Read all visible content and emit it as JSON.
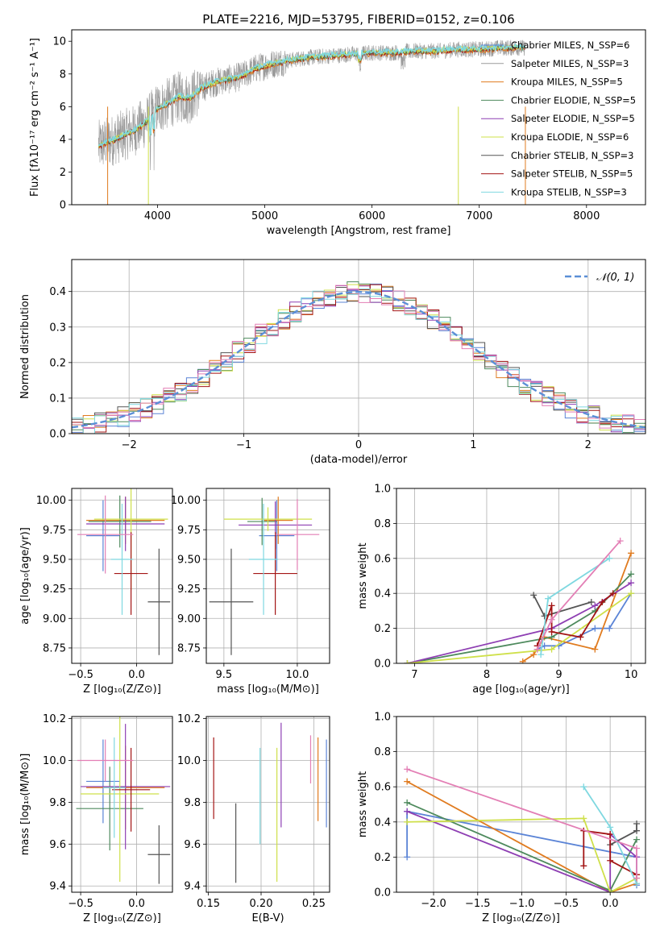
{
  "colors": {
    "chabrier_miles": "#5b84d6",
    "salpeter_miles": "#9a9a9a",
    "kroupa_miles": "#e07b1f",
    "chabrier_elodie": "#4e8a5d",
    "salpeter_elodie": "#8e3fb3",
    "kroupa_elodie": "#cfe04a",
    "chabrier_stelib": "#555555",
    "salpeter_stelib": "#a31515",
    "kroupa_stelib": "#7fd8e0",
    "pink": "#e37fb5",
    "normal": "#5b8fd6"
  },
  "chart_data": [
    {
      "id": "spectrum",
      "type": "line",
      "title": "PLATE=2216, MJD=53795, FIBERID=0152, z=0.106",
      "xlabel": "wavelength [Angstrom, rest frame]",
      "ylabel": "Flux [fλ10⁻¹⁷ erg cm⁻² s⁻¹ A⁻¹]",
      "xlim": [
        3200,
        8550
      ],
      "ylim": [
        0,
        10.7
      ],
      "xticks": [
        "4000",
        "5000",
        "6000",
        "7000",
        "8000"
      ],
      "yticks": [
        "0",
        "2",
        "4",
        "6",
        "8",
        "10"
      ],
      "grid": false,
      "legend_position": "upper-right",
      "continuum": {
        "x": [
          3450,
          3600,
          3700,
          3800,
          3900,
          4000,
          4100,
          4200,
          4300,
          4400,
          4500,
          4600,
          4700,
          4800,
          4900,
          5000,
          5200,
          5400,
          5600,
          5800,
          6000,
          6200,
          6400,
          6600,
          6800,
          7000,
          7200,
          7400
        ],
        "y": [
          3.6,
          4.0,
          4.3,
          4.6,
          5.1,
          5.9,
          6.2,
          6.6,
          6.5,
          7.1,
          7.4,
          7.6,
          7.7,
          7.9,
          8.3,
          8.5,
          8.8,
          9.0,
          9.1,
          9.2,
          9.3,
          9.3,
          9.4,
          9.4,
          9.5,
          9.5,
          9.6,
          9.6
        ]
      },
      "legend": [
        "Chabrier MILES, N_SSP=6",
        "Salpeter MILES, N_SSP=3",
        "Kroupa MILES, N_SSP=5",
        "Chabrier ELODIE, N_SSP=5",
        "Salpeter ELODIE, N_SSP=5",
        "Kroupa ELODIE, N_SSP=6",
        "Chabrier STELIB, N_SSP=3",
        "Salpeter STELIB, N_SSP=5",
        "Kroupa STELIB, N_SSP=3"
      ]
    },
    {
      "id": "residuals",
      "type": "bar",
      "xlabel": "(data-model)/error",
      "ylabel": "Normed distribution",
      "xlim": [
        -2.5,
        2.5
      ],
      "ylim": [
        0,
        0.49
      ],
      "xticks": [
        "−2",
        "−1",
        "0",
        "1",
        "2"
      ],
      "yticks": [
        "0.0",
        "0.1",
        "0.2",
        "0.3",
        "0.4"
      ],
      "grid": true,
      "legend": [
        "𝒩(0, 1)"
      ],
      "bin_width": 0.1
    },
    {
      "id": "age_vs_Z",
      "type": "scatter",
      "xlabel": "Z [log₁₀(Z/Z⊙)]",
      "ylabel": "age  [log₁₀(age/yr)]",
      "xlim": [
        -0.58,
        0.32
      ],
      "ylim": [
        8.62,
        10.1
      ],
      "xticks": [
        "−0.5",
        "0.0"
      ],
      "yticks": [
        "8.75",
        "9.00",
        "9.25",
        "9.50",
        "9.75",
        "10.00"
      ],
      "grid": true,
      "points": [
        {
          "color": "chabrier_miles",
          "x": -0.3,
          "xerr": 0.15,
          "y": 9.7,
          "yerr": 0.3
        },
        {
          "color": "kroupa_miles",
          "x": -0.1,
          "xerr": 0.35,
          "y": 9.83,
          "yerr": 0.2
        },
        {
          "color": "chabrier_elodie",
          "x": -0.15,
          "xerr": 0.28,
          "y": 9.82,
          "yerr": 0.22
        },
        {
          "color": "salpeter_elodie",
          "x": -0.1,
          "xerr": 0.35,
          "y": 9.8,
          "yerr": 0.23
        },
        {
          "color": "kroupa_elodie",
          "x": -0.05,
          "xerr": 0.33,
          "y": 9.84,
          "yerr": 0.6
        },
        {
          "color": "chabrier_stelib",
          "x": 0.2,
          "xerr": 0.1,
          "y": 9.14,
          "yerr": 0.45
        },
        {
          "color": "salpeter_stelib",
          "x": -0.05,
          "xerr": 0.15,
          "y": 9.38,
          "yerr": 0.35
        },
        {
          "color": "kroupa_stelib",
          "x": -0.13,
          "xerr": 0.1,
          "y": 9.5,
          "yerr": 0.47
        },
        {
          "color": "pink",
          "x": -0.28,
          "xerr": 0.25,
          "y": 9.71,
          "yerr": 0.33
        }
      ]
    },
    {
      "id": "age_vs_mass",
      "type": "scatter",
      "xlabel": "mass [log₁₀(M/M⊙)]",
      "xlim": [
        9.38,
        10.22
      ],
      "ylim": [
        8.62,
        10.1
      ],
      "xticks": [
        "9.5",
        "10.0"
      ],
      "yticks": [
        "8.75",
        "9.00",
        "9.25",
        "9.50",
        "9.75",
        "10.00"
      ],
      "grid": true,
      "points": [
        {
          "color": "chabrier_miles",
          "x": 9.86,
          "xerr": 0.12,
          "y": 9.7,
          "yerr": 0.3
        },
        {
          "color": "kroupa_miles",
          "x": 9.87,
          "xerr": 0.1,
          "y": 9.83,
          "yerr": 0.2
        },
        {
          "color": "chabrier_elodie",
          "x": 9.76,
          "xerr": 0.1,
          "y": 9.82,
          "yerr": 0.2
        },
        {
          "color": "salpeter_elodie",
          "x": 9.85,
          "xerr": 0.25,
          "y": 9.79,
          "yerr": 0.2
        },
        {
          "color": "kroupa_elodie",
          "x": 9.8,
          "xerr": 0.3,
          "y": 9.84,
          "yerr": 0.1
        },
        {
          "color": "chabrier_stelib",
          "x": 9.55,
          "xerr": 0.15,
          "y": 9.14,
          "yerr": 0.45
        },
        {
          "color": "salpeter_stelib",
          "x": 9.85,
          "xerr": 0.15,
          "y": 9.38,
          "yerr": 0.35
        },
        {
          "color": "kroupa_stelib",
          "x": 9.77,
          "xerr": 0.1,
          "y": 9.5,
          "yerr": 0.47
        },
        {
          "color": "pink",
          "x": 10.0,
          "xerr": 0.15,
          "y": 9.71,
          "yerr": 0.3
        }
      ]
    },
    {
      "id": "weight_vs_age",
      "type": "line",
      "xlabel": "age  [log₁₀(age/yr)]",
      "ylabel": "mass weight",
      "xlim": [
        6.75,
        10.2
      ],
      "ylim": [
        0,
        1.0
      ],
      "xticks": [
        "7",
        "8",
        "9",
        "10"
      ],
      "yticks": [
        "0.0",
        "0.2",
        "0.4",
        "0.6",
        "0.8",
        "1.0"
      ],
      "grid": true,
      "series": [
        {
          "color": "chabrier_miles",
          "x": [
            8.7,
            8.8,
            9.0,
            9.5,
            9.7,
            10.0
          ],
          "y": [
            0.08,
            0.1,
            0.1,
            0.2,
            0.2,
            0.4
          ]
        },
        {
          "color": "kroupa_miles",
          "x": [
            8.5,
            8.65,
            8.8,
            9.5,
            10.0
          ],
          "y": [
            0.01,
            0.05,
            0.15,
            0.08,
            0.63
          ]
        },
        {
          "color": "chabrier_elodie",
          "x": [
            6.9,
            8.9,
            9.5,
            10.0
          ],
          "y": [
            0.0,
            0.15,
            0.3,
            0.51
          ]
        },
        {
          "color": "salpeter_elodie",
          "x": [
            6.9,
            8.9,
            9.5,
            10.0
          ],
          "y": [
            0.0,
            0.2,
            0.33,
            0.46
          ]
        },
        {
          "color": "kroupa_elodie",
          "x": [
            6.9,
            8.9,
            10.0
          ],
          "y": [
            0.0,
            0.08,
            0.4
          ]
        },
        {
          "color": "chabrier_stelib",
          "x": [
            8.65,
            8.8,
            9.45
          ],
          "y": [
            0.39,
            0.27,
            0.35
          ]
        },
        {
          "color": "salpeter_stelib",
          "x": [
            8.7,
            8.9,
            8.9,
            9.3,
            9.6,
            9.75
          ],
          "y": [
            0.1,
            0.33,
            0.18,
            0.15,
            0.35,
            0.4
          ]
        },
        {
          "color": "kroupa_stelib",
          "x": [
            8.75,
            8.85,
            9.7
          ],
          "y": [
            0.05,
            0.37,
            0.6
          ]
        },
        {
          "color": "pink",
          "x": [
            8.7,
            8.9,
            9.85
          ],
          "y": [
            0.08,
            0.25,
            0.7
          ]
        }
      ]
    },
    {
      "id": "mass_vs_Z",
      "type": "scatter",
      "xlabel": "Z [log₁₀(Z/Z⊙)]",
      "ylabel": "mass [log₁₀(M/M⊙)]",
      "xlim": [
        -0.58,
        0.32
      ],
      "ylim": [
        9.37,
        10.21
      ],
      "xticks": [
        "−0.5",
        "0.0"
      ],
      "yticks": [
        "9.4",
        "9.6",
        "9.8",
        "10.0",
        "10.2"
      ],
      "grid": true,
      "points": [
        {
          "color": "chabrier_miles",
          "x": -0.3,
          "xerr": 0.15,
          "y": 9.9,
          "yerr": 0.2
        },
        {
          "color": "kroupa_miles",
          "x": -0.1,
          "xerr": 0.35,
          "y": 9.87,
          "yerr": 0.2
        },
        {
          "color": "chabrier_elodie",
          "x": -0.24,
          "xerr": 0.3,
          "y": 9.77,
          "yerr": 0.2
        },
        {
          "color": "salpeter_elodie",
          "x": -0.1,
          "xerr": 0.4,
          "y": 9.875,
          "yerr": 0.3
        },
        {
          "color": "kroupa_elodie",
          "x": -0.15,
          "xerr": 0.35,
          "y": 9.84,
          "yerr": 0.42
        },
        {
          "color": "chabrier_stelib",
          "x": 0.2,
          "xerr": 0.1,
          "y": 9.55,
          "yerr": 0.14
        },
        {
          "color": "salpeter_stelib",
          "x": -0.05,
          "xerr": 0.17,
          "y": 9.86,
          "yerr": 0.2
        },
        {
          "color": "kroupa_stelib",
          "x": -0.2,
          "xerr": 0.1,
          "y": 9.87,
          "yerr": 0.24
        },
        {
          "color": "pink",
          "x": -0.28,
          "xerr": 0.25,
          "y": 10.0,
          "yerr": 0.1
        }
      ]
    },
    {
      "id": "mass_vs_ebv",
      "type": "scatter",
      "xlabel": "E(B-V)",
      "xlim": [
        0.148,
        0.265
      ],
      "ylim": [
        9.37,
        10.21
      ],
      "xticks": [
        "0.15",
        "0.20",
        "0.25"
      ],
      "yticks": [
        "9.4",
        "9.6",
        "9.8",
        "10.0",
        "10.2"
      ],
      "grid": true,
      "points": [
        {
          "color": "salpeter_stelib",
          "x": 0.155,
          "y": 9.915,
          "yerr": 0.195
        },
        {
          "color": "chabrier_stelib",
          "x": 0.176,
          "y": 9.605,
          "yerr": 0.19
        },
        {
          "color": "kroupa_stelib",
          "x": 0.199,
          "y": 9.83,
          "yerr": 0.23
        },
        {
          "color": "kroupa_elodie",
          "x": 0.215,
          "y": 9.74,
          "yerr": 0.32
        },
        {
          "color": "salpeter_elodie",
          "x": 0.219,
          "y": 9.93,
          "yerr": 0.25
        },
        {
          "color": "pink",
          "x": 0.247,
          "y": 10.005,
          "yerr": 0.115
        },
        {
          "color": "kroupa_miles",
          "x": 0.254,
          "y": 9.91,
          "yerr": 0.2
        },
        {
          "color": "chabrier_miles",
          "x": 0.262,
          "y": 9.89,
          "yerr": 0.21
        }
      ]
    },
    {
      "id": "weight_vs_Z",
      "type": "line",
      "xlabel": "Z [log₁₀(Z/Z⊙)]",
      "ylabel": "mass weight",
      "xlim": [
        -2.42,
        0.4
      ],
      "ylim": [
        0,
        1.0
      ],
      "xticks": [
        "−2.0",
        "−1.5",
        "−1.0",
        "−0.5",
        "0.0"
      ],
      "yticks": [
        "0.0",
        "0.2",
        "0.4",
        "0.6",
        "0.8",
        "1.0"
      ],
      "grid": true,
      "series": [
        {
          "color": "chabrier_miles",
          "x": [
            -2.3,
            -2.3,
            0.3,
            0.3
          ],
          "y": [
            0.2,
            0.46,
            0.2,
            0.04
          ]
        },
        {
          "color": "kroupa_miles",
          "x": [
            -2.3,
            0.0,
            0.3,
            0.3
          ],
          "y": [
            0.63,
            0.0,
            0.05,
            0.1
          ]
        },
        {
          "color": "chabrier_elodie",
          "x": [
            -2.3,
            0.0,
            0.3
          ],
          "y": [
            0.51,
            0.01,
            0.3
          ]
        },
        {
          "color": "salpeter_elodie",
          "x": [
            -2.3,
            0.0,
            0.0,
            0.3
          ],
          "y": [
            0.46,
            0.0,
            0.33,
            0.2
          ]
        },
        {
          "color": "kroupa_elodie",
          "x": [
            -2.3,
            -0.3,
            0.0,
            0.3
          ],
          "y": [
            0.4,
            0.42,
            0.0,
            0.08
          ]
        },
        {
          "color": "chabrier_stelib",
          "x": [
            0.0,
            0.3,
            0.3
          ],
          "y": [
            0.27,
            0.35,
            0.39
          ]
        },
        {
          "color": "salpeter_stelib",
          "x": [
            -0.3,
            -0.3,
            0.0,
            0.0,
            0.3
          ],
          "y": [
            0.15,
            0.35,
            0.33,
            0.18,
            0.1
          ]
        },
        {
          "color": "kroupa_stelib",
          "x": [
            -0.3,
            0.0,
            0.3
          ],
          "y": [
            0.6,
            0.37,
            0.05
          ]
        },
        {
          "color": "pink",
          "x": [
            -2.3,
            0.3,
            0.3
          ],
          "y": [
            0.7,
            0.25,
            0.08
          ]
        }
      ]
    }
  ]
}
